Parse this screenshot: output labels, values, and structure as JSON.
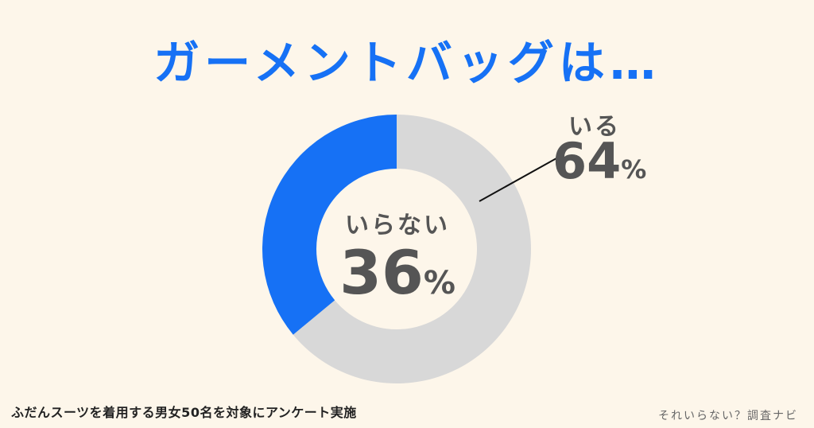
{
  "title": "ガーメントバッグは…",
  "chart_data": {
    "type": "pie",
    "subtype": "donut",
    "title": "ガーメントバッグは…",
    "categories": [
      "いる",
      "いらない"
    ],
    "values": [
      64,
      36
    ],
    "unit": "%",
    "colors": {
      "いる": "#d8d8d8",
      "いらない": "#1671f5"
    },
    "start_angle": "12 o'clock, clockwise: いる then いらない",
    "annotations": [
      {
        "label": "いらない",
        "value": "36",
        "position": "center"
      },
      {
        "label": "いる",
        "value": "64",
        "position": "outside upper-right with leader line"
      }
    ],
    "note": "ふだんスーツを着用する男女50名を対象にアンケート実施"
  },
  "labels": {
    "inner": {
      "name": "いらない",
      "value": "36",
      "unit": "%"
    },
    "outer": {
      "name": "いる",
      "value": "64",
      "unit": "%"
    }
  },
  "footer": {
    "note": "ふだんスーツを着用する男女50名を対象にアンケート実施",
    "brand": "それいらない？調査ナビ"
  },
  "colors": {
    "background": "#fdf6ea",
    "accent": "#1671f5",
    "gray": "#d8d8d8",
    "text": "#555555"
  }
}
